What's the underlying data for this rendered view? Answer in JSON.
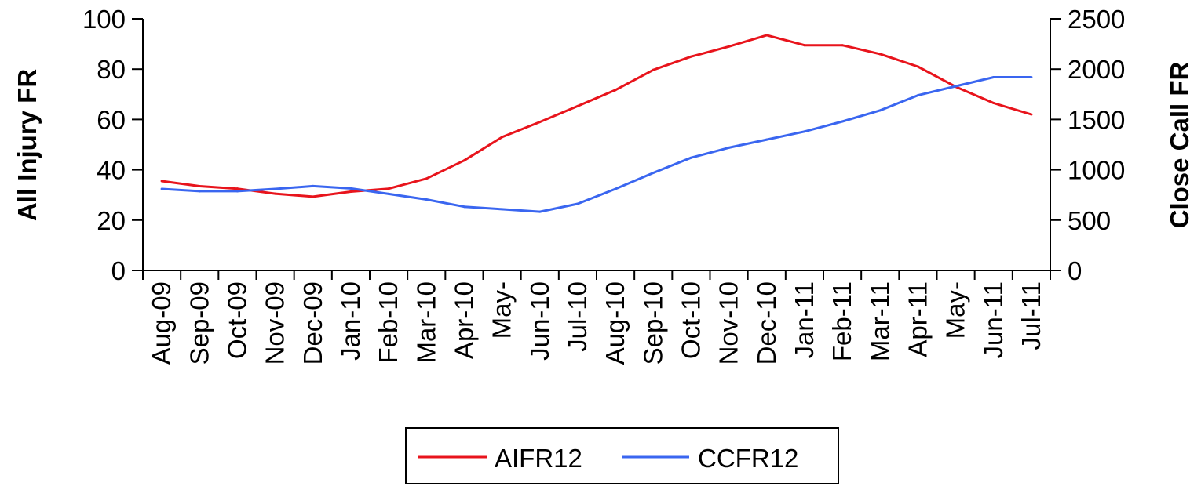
{
  "chart_data": {
    "type": "line",
    "categories": [
      "Aug-09",
      "Sep-09",
      "Oct-09",
      "Nov-09",
      "Dec-09",
      "Jan-10",
      "Feb-10",
      "Mar-10",
      "Apr-10",
      "May-",
      "Jun-10",
      "Jul-10",
      "Aug-10",
      "Sep-10",
      "Oct-10",
      "Nov-10",
      "Dec-10",
      "Jan-11",
      "Feb-11",
      "Mar-11",
      "Apr-11",
      "May-",
      "Jun-11",
      "Jul-11"
    ],
    "series": [
      {
        "name": "AIFR12",
        "axis": "left",
        "color": "#e8141c",
        "values": [
          35.5,
          33.5,
          32.5,
          30.5,
          29.3,
          31.3,
          32.5,
          36.5,
          43.7,
          53,
          59,
          65.3,
          71.7,
          79.7,
          85,
          89,
          93.5,
          89.5,
          89.5,
          86,
          81,
          73,
          66.5,
          62
        ]
      },
      {
        "name": "CCFR12",
        "axis": "right",
        "color": "#3a66f0",
        "values": [
          810,
          787,
          787,
          810,
          838,
          815,
          760,
          705,
          633,
          608,
          583,
          662,
          810,
          970,
          1120,
          1220,
          1300,
          1380,
          1480,
          1590,
          1740,
          1830,
          1920,
          1920
        ]
      }
    ],
    "y_left": {
      "label": "All Injury FR",
      "ylim": [
        0,
        100
      ],
      "ticks": [
        "0",
        "20",
        "40",
        "60",
        "80",
        "100"
      ]
    },
    "y_right": {
      "label": "Close Call FR",
      "ylim": [
        0,
        2500
      ],
      "ticks": [
        "0",
        "500",
        "1000",
        "1500",
        "2000",
        "2500"
      ]
    },
    "xlabel": "",
    "legend": {
      "position": "bottom",
      "entries": [
        "AIFR12",
        "CCFR12"
      ]
    },
    "grid": false
  }
}
